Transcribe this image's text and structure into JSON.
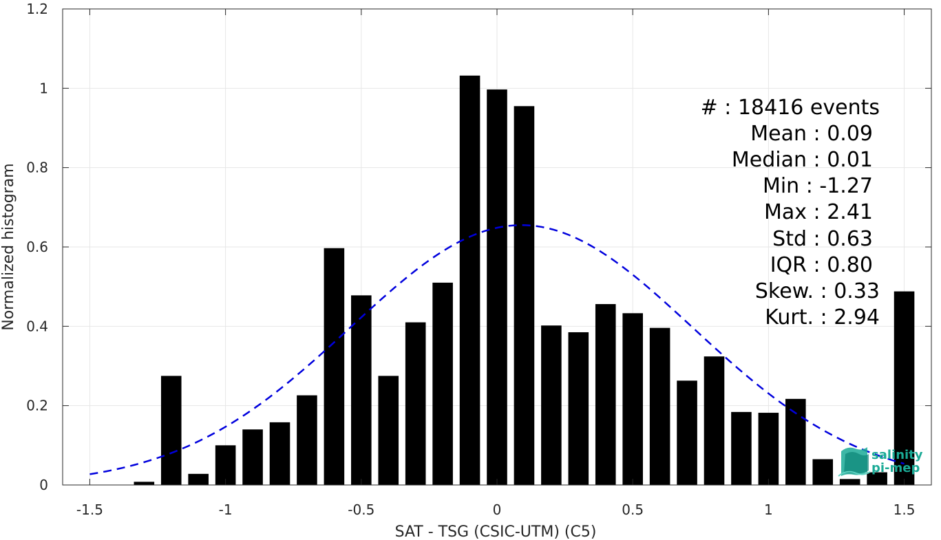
{
  "chart_data": {
    "type": "bar",
    "xlabel": "SAT - TSG (CSIC-UTM) (C5)",
    "ylabel": "Normalized histogram",
    "xlim": [
      -1.6,
      1.6
    ],
    "ylim": [
      0,
      1.2
    ],
    "xticks": [
      -1.5,
      -1,
      -0.5,
      0,
      0.5,
      1,
      1.5
    ],
    "xtick_labels": [
      "-1.5",
      "-1",
      "-0.5",
      "0",
      "0.5",
      "1",
      "1.5"
    ],
    "yticks": [
      0,
      0.2,
      0.4,
      0.6,
      0.8,
      1,
      1.2
    ],
    "ytick_labels": [
      "0",
      "0.2",
      "0.4",
      "0.6",
      "0.8",
      "1",
      "1.2"
    ],
    "grid": true,
    "bar_width": 0.075,
    "bar_color": "#000000",
    "x": [
      -1.5,
      -1.4,
      -1.3,
      -1.2,
      -1.1,
      -1.0,
      -0.9,
      -0.8,
      -0.7,
      -0.6,
      -0.5,
      -0.4,
      -0.3,
      -0.2,
      -0.1,
      0.0,
      0.1,
      0.2,
      0.3,
      0.4,
      0.5,
      0.6,
      0.7,
      0.8,
      0.9,
      1.0,
      1.1,
      1.2,
      1.3,
      1.4,
      1.5
    ],
    "values": [
      0,
      0,
      0.008,
      0.275,
      0.028,
      0.1,
      0.14,
      0.158,
      0.226,
      0.597,
      0.478,
      0.275,
      0.41,
      0.51,
      1.032,
      0.997,
      0.955,
      0.402,
      0.385,
      0.456,
      0.433,
      0.396,
      0.263,
      0.324,
      0.184,
      0.182,
      0.217,
      0.065,
      0.015,
      0.032,
      0.488
    ],
    "fit_curve": {
      "type": "gaussian",
      "mean": 0.09,
      "std": 0.63,
      "peak": 0.655,
      "x_range": [
        -1.5,
        1.5
      ],
      "color": "#0000dd",
      "style": "dashed"
    },
    "stats": [
      "#  : 18416 events",
      "Mean : 0.09",
      "Median : 0.01",
      "Min : -1.27",
      "Max : 2.41",
      "Std : 0.63",
      "IQR : 0.80",
      "Skew. : 0.33",
      "Kurt. : 2.94"
    ]
  },
  "logo": {
    "line1": "salinity",
    "line2": "pi-mep",
    "color": "#1aaa96"
  }
}
